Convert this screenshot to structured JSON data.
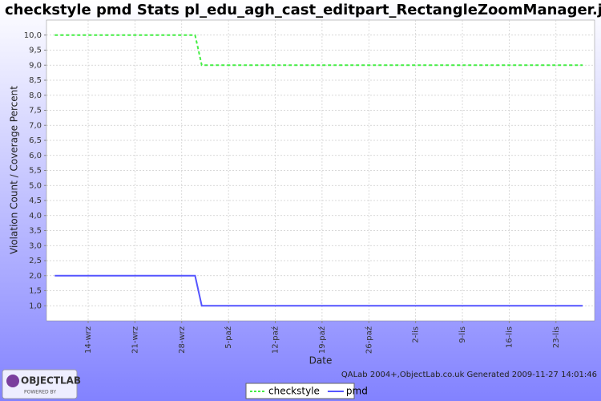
{
  "chart_data": {
    "type": "line",
    "title": "checkstyle pmd  Stats pl_edu_agh_cast_editpart_RectangleZoomManager.java",
    "x_label": "Date",
    "y_label": "Violation Count / Coverage Percent",
    "footer": "QALab 2004+,ObjectLab.co.uk Generated 2009-11-27 14:01:46",
    "logo_text": "OBJECTLAB",
    "logo_subtext": "POWERED BY",
    "categories": [
      null,
      null,
      null,
      null,
      null,
      "14-wrz",
      null,
      null,
      null,
      null,
      null,
      null,
      "21-wrz",
      null,
      null,
      null,
      null,
      null,
      null,
      "28-wrz",
      null,
      null,
      null,
      null,
      null,
      null,
      "5-paź",
      null,
      null,
      null,
      null,
      null,
      null,
      "12-paź",
      null,
      null,
      null,
      null,
      null,
      null,
      "19-paź",
      null,
      null,
      null,
      null,
      null,
      null,
      "26-paź",
      null,
      null,
      null,
      null,
      null,
      null,
      "2-lis",
      null,
      null,
      null,
      null,
      null,
      null,
      "9-lis",
      null,
      null,
      null,
      null,
      null,
      null,
      "16-lis",
      null,
      null,
      null,
      null,
      null,
      null,
      "23-lis",
      null,
      null,
      null,
      null
    ],
    "series": [
      {
        "name": "checkstyle",
        "color": "#44ee44",
        "dashed": true,
        "values": [
          10,
          10,
          10,
          10,
          10,
          10,
          10,
          10,
          10,
          10,
          10,
          10,
          10,
          10,
          10,
          10,
          10,
          10,
          10,
          10,
          10,
          10,
          9,
          9,
          9,
          9,
          9,
          9,
          9,
          9,
          9,
          9,
          9,
          9,
          9,
          9,
          9,
          9,
          9,
          9,
          9,
          9,
          9,
          9,
          9,
          9,
          9,
          9,
          9,
          9,
          9,
          9,
          9,
          9,
          9,
          9,
          9,
          9,
          9,
          9,
          9,
          9,
          9,
          9,
          9,
          9,
          9,
          9,
          9,
          9,
          9,
          9,
          9,
          9,
          9,
          9,
          9,
          9,
          9,
          9
        ]
      },
      {
        "name": "pmd",
        "color": "#5555ff",
        "dashed": false,
        "values": [
          2,
          2,
          2,
          2,
          2,
          2,
          2,
          2,
          2,
          2,
          2,
          2,
          2,
          2,
          2,
          2,
          2,
          2,
          2,
          2,
          2,
          2,
          1,
          1,
          1,
          1,
          1,
          1,
          1,
          1,
          1,
          1,
          1,
          1,
          1,
          1,
          1,
          1,
          1,
          1,
          1,
          1,
          1,
          1,
          1,
          1,
          1,
          1,
          1,
          1,
          1,
          1,
          1,
          1,
          1,
          1,
          1,
          1,
          1,
          1,
          1,
          1,
          1,
          1,
          1,
          1,
          1,
          1,
          1,
          1,
          1,
          1,
          1,
          1,
          1,
          1,
          1,
          1,
          1,
          1
        ]
      }
    ],
    "ylim": [
      0.5,
      10.5
    ],
    "yticks": [
      {
        "value": 1,
        "label": "1,0"
      },
      {
        "value": 1.5,
        "label": "1,5"
      },
      {
        "value": 2,
        "label": "2,0"
      },
      {
        "value": 2.5,
        "label": "2,5"
      },
      {
        "value": 3,
        "label": "3,0"
      },
      {
        "value": 3.5,
        "label": "3,5"
      },
      {
        "value": 4,
        "label": "4,0"
      },
      {
        "value": 4.5,
        "label": "4,5"
      },
      {
        "value": 5,
        "label": "5,0"
      },
      {
        "value": 5.5,
        "label": "5,5"
      },
      {
        "value": 6,
        "label": "6,0"
      },
      {
        "value": 6.5,
        "label": "6,5"
      },
      {
        "value": 7,
        "label": "7,0"
      },
      {
        "value": 7.5,
        "label": "7,5"
      },
      {
        "value": 8,
        "label": "8,0"
      },
      {
        "value": 8.5,
        "label": "8,5"
      },
      {
        "value": 9,
        "label": "9,0"
      },
      {
        "value": 9.5,
        "label": "9,5"
      },
      {
        "value": 10,
        "label": "10,0"
      }
    ],
    "grid": true,
    "legend": "bottom"
  }
}
